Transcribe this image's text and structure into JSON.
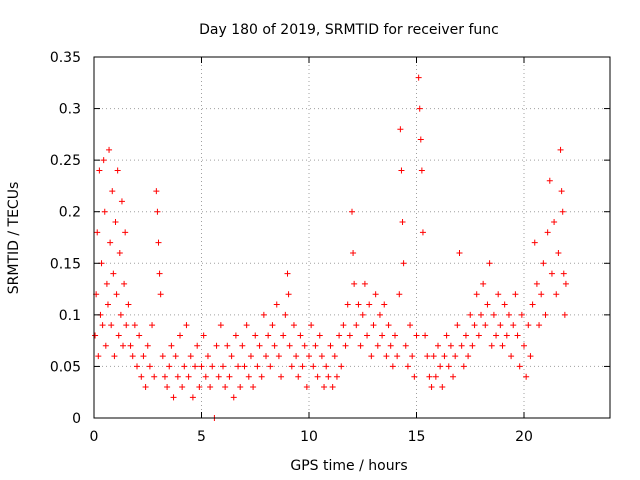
{
  "chart_data": {
    "type": "scatter",
    "title": "Day 180 of 2019, SRMTID for receiver func",
    "xlabel": "GPS time / hours",
    "ylabel": "SRMTID / TECUs",
    "xlim": [
      0,
      24
    ],
    "ylim": [
      0,
      0.35
    ],
    "xticks": [
      0,
      5,
      10,
      15,
      20
    ],
    "xtick_labels": [
      "0",
      "5",
      "10",
      "15",
      "20"
    ],
    "yticks": [
      0,
      0.05,
      0.1,
      0.15,
      0.2,
      0.25,
      0.3,
      0.35
    ],
    "ytick_labels": [
      "0",
      "0.05",
      "0.1",
      "0.15",
      "0.2",
      "0.25",
      "0.3",
      "0.35"
    ],
    "grid": true,
    "marker": "+",
    "color": "#ff0000",
    "series": [
      {
        "name": "SRMTID",
        "points": [
          [
            0.05,
            0.08
          ],
          [
            0.1,
            0.12
          ],
          [
            0.15,
            0.18
          ],
          [
            0.2,
            0.06
          ],
          [
            0.25,
            0.24
          ],
          [
            0.3,
            0.1
          ],
          [
            0.35,
            0.15
          ],
          [
            0.4,
            0.09
          ],
          [
            0.45,
            0.25
          ],
          [
            0.5,
            0.2
          ],
          [
            0.55,
            0.07
          ],
          [
            0.6,
            0.13
          ],
          [
            0.65,
            0.11
          ],
          [
            0.7,
            0.26
          ],
          [
            0.75,
            0.17
          ],
          [
            0.8,
            0.09
          ],
          [
            0.85,
            0.22
          ],
          [
            0.9,
            0.14
          ],
          [
            0.95,
            0.06
          ],
          [
            1.0,
            0.19
          ],
          [
            1.05,
            0.12
          ],
          [
            1.1,
            0.24
          ],
          [
            1.15,
            0.08
          ],
          [
            1.2,
            0.16
          ],
          [
            1.25,
            0.1
          ],
          [
            1.3,
            0.21
          ],
          [
            1.35,
            0.07
          ],
          [
            1.4,
            0.13
          ],
          [
            1.45,
            0.18
          ],
          [
            1.5,
            0.09
          ],
          [
            1.6,
            0.11
          ],
          [
            1.7,
            0.07
          ],
          [
            1.8,
            0.06
          ],
          [
            1.9,
            0.09
          ],
          [
            2.0,
            0.05
          ],
          [
            2.1,
            0.08
          ],
          [
            2.2,
            0.04
          ],
          [
            2.3,
            0.06
          ],
          [
            2.4,
            0.03
          ],
          [
            2.5,
            0.07
          ],
          [
            2.6,
            0.05
          ],
          [
            2.7,
            0.09
          ],
          [
            2.8,
            0.04
          ],
          [
            2.9,
            0.22
          ],
          [
            2.95,
            0.2
          ],
          [
            3.0,
            0.17
          ],
          [
            3.05,
            0.14
          ],
          [
            3.1,
            0.12
          ],
          [
            3.2,
            0.06
          ],
          [
            3.3,
            0.04
          ],
          [
            3.4,
            0.03
          ],
          [
            3.5,
            0.05
          ],
          [
            3.6,
            0.07
          ],
          [
            3.7,
            0.02
          ],
          [
            3.8,
            0.06
          ],
          [
            3.9,
            0.04
          ],
          [
            4.0,
            0.08
          ],
          [
            4.1,
            0.03
          ],
          [
            4.2,
            0.05
          ],
          [
            4.3,
            0.09
          ],
          [
            4.4,
            0.04
          ],
          [
            4.5,
            0.06
          ],
          [
            4.6,
            0.02
          ],
          [
            4.7,
            0.05
          ],
          [
            4.8,
            0.07
          ],
          [
            4.9,
            0.03
          ],
          [
            5.0,
            0.05
          ],
          [
            5.1,
            0.08
          ],
          [
            5.2,
            0.04
          ],
          [
            5.3,
            0.06
          ],
          [
            5.4,
            0.03
          ],
          [
            5.5,
            0.05
          ],
          [
            5.6,
            0.0
          ],
          [
            5.7,
            0.07
          ],
          [
            5.8,
            0.04
          ],
          [
            5.9,
            0.09
          ],
          [
            6.0,
            0.05
          ],
          [
            6.1,
            0.03
          ],
          [
            6.2,
            0.07
          ],
          [
            6.3,
            0.04
          ],
          [
            6.4,
            0.06
          ],
          [
            6.5,
            0.02
          ],
          [
            6.6,
            0.08
          ],
          [
            6.7,
            0.05
          ],
          [
            6.8,
            0.03
          ],
          [
            6.9,
            0.07
          ],
          [
            7.0,
            0.05
          ],
          [
            7.1,
            0.09
          ],
          [
            7.2,
            0.04
          ],
          [
            7.3,
            0.06
          ],
          [
            7.4,
            0.03
          ],
          [
            7.5,
            0.08
          ],
          [
            7.6,
            0.05
          ],
          [
            7.7,
            0.07
          ],
          [
            7.8,
            0.04
          ],
          [
            7.9,
            0.1
          ],
          [
            8.0,
            0.06
          ],
          [
            8.1,
            0.08
          ],
          [
            8.2,
            0.05
          ],
          [
            8.3,
            0.09
          ],
          [
            8.4,
            0.07
          ],
          [
            8.5,
            0.11
          ],
          [
            8.6,
            0.06
          ],
          [
            8.7,
            0.04
          ],
          [
            8.8,
            0.08
          ],
          [
            8.9,
            0.1
          ],
          [
            9.0,
            0.14
          ],
          [
            9.05,
            0.12
          ],
          [
            9.1,
            0.07
          ],
          [
            9.2,
            0.05
          ],
          [
            9.3,
            0.09
          ],
          [
            9.4,
            0.06
          ],
          [
            9.5,
            0.04
          ],
          [
            9.6,
            0.08
          ],
          [
            9.7,
            0.05
          ],
          [
            9.8,
            0.07
          ],
          [
            9.9,
            0.03
          ],
          [
            10.0,
            0.06
          ],
          [
            10.1,
            0.09
          ],
          [
            10.2,
            0.05
          ],
          [
            10.3,
            0.07
          ],
          [
            10.4,
            0.04
          ],
          [
            10.5,
            0.08
          ],
          [
            10.6,
            0.06
          ],
          [
            10.7,
            0.03
          ],
          [
            10.8,
            0.05
          ],
          [
            10.9,
            0.04
          ],
          [
            11.0,
            0.07
          ],
          [
            11.1,
            0.03
          ],
          [
            11.2,
            0.06
          ],
          [
            11.3,
            0.04
          ],
          [
            11.4,
            0.08
          ],
          [
            11.5,
            0.05
          ],
          [
            11.6,
            0.09
          ],
          [
            11.7,
            0.07
          ],
          [
            11.8,
            0.11
          ],
          [
            11.9,
            0.08
          ],
          [
            12.0,
            0.2
          ],
          [
            12.05,
            0.16
          ],
          [
            12.1,
            0.13
          ],
          [
            12.2,
            0.09
          ],
          [
            12.3,
            0.11
          ],
          [
            12.4,
            0.07
          ],
          [
            12.5,
            0.1
          ],
          [
            12.6,
            0.13
          ],
          [
            12.7,
            0.08
          ],
          [
            12.8,
            0.11
          ],
          [
            12.9,
            0.06
          ],
          [
            13.0,
            0.09
          ],
          [
            13.1,
            0.12
          ],
          [
            13.2,
            0.07
          ],
          [
            13.3,
            0.1
          ],
          [
            13.4,
            0.08
          ],
          [
            13.5,
            0.11
          ],
          [
            13.6,
            0.06
          ],
          [
            13.7,
            0.09
          ],
          [
            13.8,
            0.07
          ],
          [
            13.9,
            0.05
          ],
          [
            14.0,
            0.08
          ],
          [
            14.1,
            0.06
          ],
          [
            14.2,
            0.12
          ],
          [
            14.25,
            0.28
          ],
          [
            14.3,
            0.24
          ],
          [
            14.35,
            0.19
          ],
          [
            14.4,
            0.15
          ],
          [
            14.5,
            0.07
          ],
          [
            14.6,
            0.05
          ],
          [
            14.7,
            0.09
          ],
          [
            14.8,
            0.06
          ],
          [
            14.9,
            0.04
          ],
          [
            15.0,
            0.08
          ],
          [
            15.1,
            0.33
          ],
          [
            15.15,
            0.3
          ],
          [
            15.2,
            0.27
          ],
          [
            15.25,
            0.24
          ],
          [
            15.3,
            0.18
          ],
          [
            15.4,
            0.08
          ],
          [
            15.5,
            0.06
          ],
          [
            15.6,
            0.04
          ],
          [
            15.7,
            0.03
          ],
          [
            15.8,
            0.06
          ],
          [
            15.9,
            0.04
          ],
          [
            16.0,
            0.07
          ],
          [
            16.1,
            0.05
          ],
          [
            16.2,
            0.03
          ],
          [
            16.3,
            0.06
          ],
          [
            16.4,
            0.08
          ],
          [
            16.5,
            0.05
          ],
          [
            16.6,
            0.07
          ],
          [
            16.7,
            0.04
          ],
          [
            16.8,
            0.06
          ],
          [
            16.9,
            0.09
          ],
          [
            17.0,
            0.16
          ],
          [
            17.1,
            0.07
          ],
          [
            17.2,
            0.05
          ],
          [
            17.3,
            0.08
          ],
          [
            17.4,
            0.06
          ],
          [
            17.5,
            0.1
          ],
          [
            17.6,
            0.07
          ],
          [
            17.7,
            0.09
          ],
          [
            17.8,
            0.12
          ],
          [
            17.9,
            0.08
          ],
          [
            18.0,
            0.1
          ],
          [
            18.1,
            0.13
          ],
          [
            18.2,
            0.09
          ],
          [
            18.3,
            0.11
          ],
          [
            18.4,
            0.15
          ],
          [
            18.5,
            0.07
          ],
          [
            18.6,
            0.1
          ],
          [
            18.7,
            0.08
          ],
          [
            18.8,
            0.12
          ],
          [
            18.9,
            0.09
          ],
          [
            19.0,
            0.07
          ],
          [
            19.1,
            0.11
          ],
          [
            19.2,
            0.08
          ],
          [
            19.3,
            0.1
          ],
          [
            19.4,
            0.06
          ],
          [
            19.5,
            0.09
          ],
          [
            19.6,
            0.12
          ],
          [
            19.7,
            0.08
          ],
          [
            19.8,
            0.05
          ],
          [
            19.9,
            0.1
          ],
          [
            20.0,
            0.07
          ],
          [
            20.1,
            0.04
          ],
          [
            20.2,
            0.09
          ],
          [
            20.3,
            0.06
          ],
          [
            20.4,
            0.11
          ],
          [
            20.5,
            0.17
          ],
          [
            20.6,
            0.13
          ],
          [
            20.7,
            0.09
          ],
          [
            20.8,
            0.12
          ],
          [
            20.9,
            0.15
          ],
          [
            21.0,
            0.1
          ],
          [
            21.1,
            0.18
          ],
          [
            21.2,
            0.23
          ],
          [
            21.3,
            0.14
          ],
          [
            21.4,
            0.19
          ],
          [
            21.5,
            0.12
          ],
          [
            21.6,
            0.16
          ],
          [
            21.7,
            0.26
          ],
          [
            21.75,
            0.22
          ],
          [
            21.8,
            0.2
          ],
          [
            21.85,
            0.14
          ],
          [
            21.9,
            0.1
          ],
          [
            21.95,
            0.13
          ]
        ]
      }
    ]
  }
}
